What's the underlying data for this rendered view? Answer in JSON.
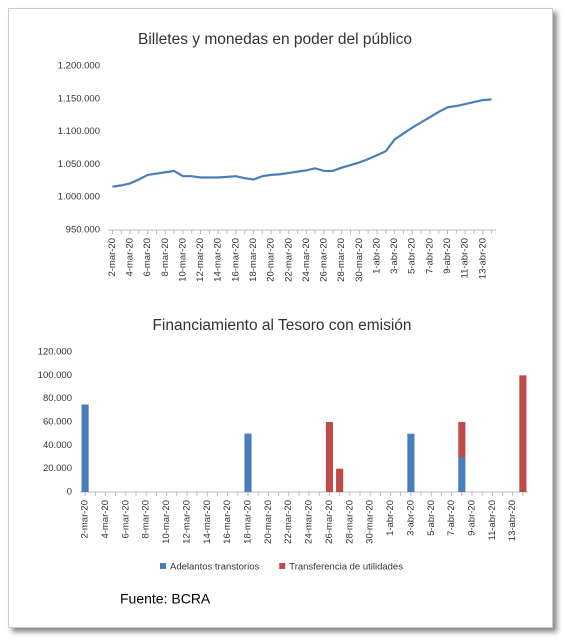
{
  "chart_data": [
    {
      "type": "line",
      "title": "Billetes y monedas en poder del público",
      "categories": [
        "2-mar-20",
        null,
        "4-mar-20",
        null,
        "6-mar-20",
        null,
        "8-mar-20",
        null,
        "10-mar-20",
        null,
        "12-mar-20",
        null,
        "14-mar-20",
        null,
        "16-mar-20",
        null,
        "18-mar-20",
        null,
        "20-mar-20",
        null,
        "22-mar-20",
        null,
        "24-mar-20",
        null,
        "26-mar-20",
        null,
        "28-mar-20",
        null,
        "30-mar-20",
        null,
        "1-abr-20",
        null,
        "3-abr-20",
        null,
        "5-abr-20",
        null,
        "7-abr-20",
        null,
        "9-abr-20",
        null,
        "11-abr-20",
        null,
        "13-abr-20",
        null
      ],
      "values": [
        1016000,
        1018000,
        1021000,
        1027000,
        1034000,
        1036000,
        1038000,
        1040000,
        1032000,
        1032000,
        1030000,
        1030000,
        1030000,
        1031000,
        1032000,
        1029000,
        1027000,
        1032000,
        1034000,
        1035000,
        1037000,
        1039000,
        1041000,
        1044000,
        1040000,
        1040000,
        1045000,
        1049000,
        1053000,
        1058000,
        1064000,
        1070000,
        1088000,
        1097000,
        1106000,
        1114000,
        1122000,
        1130000,
        1137000,
        1139000,
        1142000,
        1145000,
        1148000,
        1149000
      ],
      "color": "#4a7ebb",
      "ylim": [
        950000,
        1200000
      ],
      "yticks": [
        {
          "value": 950000,
          "label": "950.000"
        },
        {
          "value": 1000000,
          "label": "1.000.000"
        },
        {
          "value": 1050000,
          "label": "1.050.000"
        },
        {
          "value": 1100000,
          "label": "1.100.000"
        },
        {
          "value": 1150000,
          "label": "1.150.000"
        },
        {
          "value": 1200000,
          "label": "1.200.000"
        }
      ],
      "grid": false
    },
    {
      "type": "stacked_bar",
      "title": "Financiamiento al Tesoro con emisión",
      "categories": [
        "2-mar-20",
        null,
        "4-mar-20",
        null,
        "6-mar-20",
        null,
        "8-mar-20",
        null,
        "10-mar-20",
        null,
        "12-mar-20",
        null,
        "14-mar-20",
        null,
        "16-mar-20",
        null,
        "18-mar-20",
        null,
        "20-mar-20",
        null,
        "22-mar-20",
        null,
        "24-mar-20",
        null,
        "26-mar-20",
        null,
        "28-mar-20",
        null,
        "30-mar-20",
        null,
        "1-abr-20",
        null,
        "3-abr-20",
        null,
        "5-abr-20",
        null,
        "7-abr-20",
        null,
        "9-abr-20",
        null,
        "11-abr-20",
        null,
        "13-abr-20",
        null
      ],
      "series": [
        {
          "name": "Adelantos transtorios",
          "color": "#4a7ebb",
          "values": [
            75000,
            0,
            0,
            0,
            0,
            0,
            0,
            0,
            0,
            0,
            0,
            0,
            0,
            0,
            0,
            0,
            50000,
            0,
            0,
            0,
            0,
            0,
            0,
            0,
            0,
            0,
            0,
            0,
            0,
            0,
            0,
            0,
            50000,
            0,
            0,
            0,
            0,
            30000,
            0,
            0,
            0,
            0,
            0,
            0
          ]
        },
        {
          "name": "Transferencia de utilidades",
          "color": "#be4b48",
          "values": [
            0,
            0,
            0,
            0,
            0,
            0,
            0,
            0,
            0,
            0,
            0,
            0,
            0,
            0,
            0,
            0,
            0,
            0,
            0,
            0,
            0,
            0,
            0,
            0,
            60000,
            20000,
            0,
            0,
            0,
            0,
            0,
            0,
            0,
            0,
            0,
            0,
            0,
            30000,
            0,
            0,
            0,
            0,
            0,
            100000
          ]
        }
      ],
      "ylim": [
        0,
        120000
      ],
      "yticks": [
        0,
        {
          "value": 20000,
          "label": "20.000"
        },
        {
          "value": 40000,
          "label": "40.000"
        },
        {
          "value": 60000,
          "label": "60.000"
        },
        {
          "value": 80000,
          "label": "80.000"
        },
        {
          "value": 100000,
          "label": "100.000"
        },
        {
          "value": 120000,
          "label": "120.000"
        }
      ],
      "grid": false,
      "legend": "bottom"
    }
  ],
  "source": "Fuente: BCRA"
}
